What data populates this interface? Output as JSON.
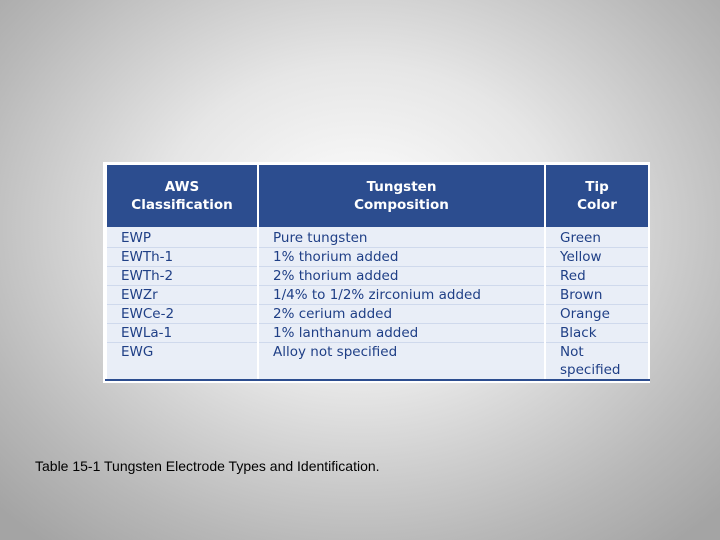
{
  "table": {
    "header": [
      "AWS Classification",
      "Tungsten Composition",
      "Tip Color"
    ],
    "rows": [
      [
        "EWP",
        "Pure tungsten",
        "Green"
      ],
      [
        "EWTh-1",
        "1% thorium added",
        "Yellow"
      ],
      [
        "EWTh-2",
        "2% thorium added",
        "Red"
      ],
      [
        "EWZr",
        "1/4% to 1/2% zirconium added",
        "Brown"
      ],
      [
        "EWCe-2",
        "2% cerium added",
        "Orange"
      ],
      [
        "EWLa-1",
        "1% lanthanum added",
        "Black"
      ],
      [
        "EWG",
        "Alloy not specified",
        "Not specified"
      ]
    ]
  },
  "caption": "Table 15-1 Tungsten Electrode Types and Identification."
}
